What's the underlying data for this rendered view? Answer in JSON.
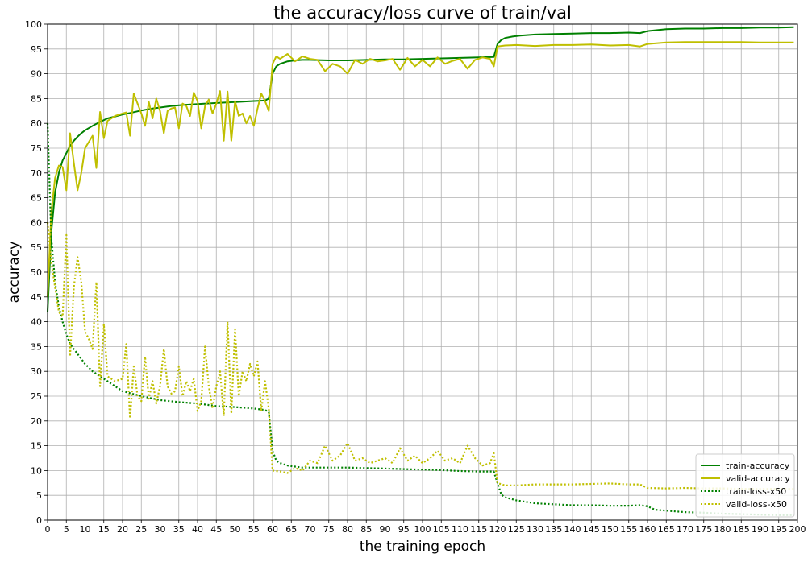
{
  "chart_data": {
    "type": "line",
    "title": "the accuracy/loss curve of train/val",
    "xlabel": "the training epoch",
    "ylabel": "accuracy",
    "xlim": [
      0,
      200
    ],
    "ylim": [
      0,
      100
    ],
    "xticks": [
      0,
      5,
      10,
      15,
      20,
      25,
      30,
      35,
      40,
      45,
      50,
      55,
      60,
      65,
      70,
      75,
      80,
      85,
      90,
      95,
      100,
      105,
      110,
      115,
      120,
      125,
      130,
      135,
      140,
      145,
      150,
      155,
      160,
      165,
      170,
      175,
      180,
      185,
      190,
      195,
      200
    ],
    "yticks": [
      0,
      5,
      10,
      15,
      20,
      25,
      30,
      35,
      40,
      45,
      50,
      55,
      60,
      65,
      70,
      75,
      80,
      85,
      90,
      95,
      100
    ],
    "grid": true,
    "legend_position": "lower-right",
    "colors": {
      "train": "#008000",
      "valid": "#bfbf00",
      "grid": "#b0b0b0"
    },
    "series": [
      {
        "name": "train-accuracy",
        "style": "solid",
        "color": "#008000",
        "x": [
          0,
          1,
          2,
          3,
          4,
          5,
          6,
          7,
          8,
          9,
          10,
          12,
          14,
          16,
          18,
          20,
          22,
          25,
          28,
          30,
          33,
          36,
          40,
          45,
          50,
          55,
          58,
          59,
          60,
          61,
          62,
          64,
          66,
          68,
          70,
          75,
          80,
          85,
          90,
          95,
          100,
          105,
          110,
          115,
          119,
          120,
          121,
          122,
          124,
          126,
          130,
          135,
          140,
          145,
          150,
          155,
          158,
          160,
          165,
          170,
          175,
          180,
          185,
          190,
          195,
          199
        ],
        "y": [
          42,
          58,
          66,
          70,
          72.5,
          74,
          75.5,
          76.5,
          77.3,
          78,
          78.6,
          79.5,
          80.3,
          81,
          81.4,
          81.8,
          82.1,
          82.6,
          83,
          83.2,
          83.5,
          83.7,
          83.9,
          84.1,
          84.3,
          84.5,
          84.6,
          85,
          90,
          91.5,
          92,
          92.5,
          92.7,
          92.8,
          92.8,
          92.7,
          92.7,
          92.8,
          92.9,
          92.9,
          93,
          93.1,
          93.2,
          93.3,
          93.4,
          96,
          96.8,
          97.2,
          97.5,
          97.7,
          97.9,
          98,
          98.1,
          98.2,
          98.2,
          98.3,
          98.2,
          98.6,
          99,
          99.1,
          99.1,
          99.2,
          99.2,
          99.3,
          99.3,
          99.4
        ]
      },
      {
        "name": "valid-accuracy",
        "style": "solid",
        "color": "#bfbf00",
        "x": [
          0,
          1,
          2,
          3,
          4,
          5,
          6,
          7,
          8,
          9,
          10,
          12,
          13,
          14,
          15,
          16,
          18,
          20,
          21,
          22,
          23,
          24,
          25,
          26,
          27,
          28,
          29,
          30,
          31,
          32,
          33,
          34,
          35,
          36,
          37,
          38,
          39,
          40,
          41,
          42,
          43,
          44,
          45,
          46,
          47,
          48,
          49,
          50,
          51,
          52,
          53,
          54,
          55,
          56,
          57,
          58,
          59,
          60,
          61,
          62,
          64,
          66,
          68,
          70,
          72,
          74,
          76,
          78,
          80,
          82,
          84,
          86,
          88,
          90,
          92,
          94,
          96,
          98,
          100,
          102,
          104,
          106,
          108,
          110,
          112,
          114,
          116,
          118,
          119,
          120,
          122,
          125,
          130,
          135,
          140,
          145,
          150,
          155,
          158,
          160,
          165,
          170,
          175,
          180,
          185,
          190,
          195,
          199
        ],
        "y": [
          45,
          62,
          69,
          71.5,
          71.2,
          66.5,
          78,
          72,
          66.5,
          70,
          75,
          77.5,
          71,
          82.3,
          77,
          80.5,
          81.5,
          82,
          82.2,
          77.5,
          86,
          84,
          82,
          79.5,
          84.3,
          81,
          85,
          82.5,
          78,
          82.5,
          83,
          83.2,
          79,
          84,
          83.5,
          81.5,
          86.2,
          84.5,
          79,
          83.5,
          84.8,
          82,
          84,
          86.5,
          76.5,
          86.4,
          76.5,
          84.5,
          81.5,
          82,
          80,
          81.5,
          79.5,
          83,
          86,
          84.5,
          82.5,
          92,
          93.5,
          93,
          94,
          92.5,
          93.5,
          93,
          92.8,
          90.5,
          92,
          91.5,
          90,
          92.8,
          92,
          93,
          92.5,
          92.7,
          93,
          90.8,
          93.2,
          91.5,
          92.8,
          91.5,
          93.3,
          92,
          92.6,
          93,
          91,
          92.8,
          93.3,
          93,
          91.5,
          95.5,
          95.7,
          95.8,
          95.6,
          95.8,
          95.8,
          95.9,
          95.7,
          95.8,
          95.5,
          96,
          96.3,
          96.4,
          96.4,
          96.4,
          96.4,
          96.3,
          96.3,
          96.3
        ]
      },
      {
        "name": "train-loss-x50",
        "style": "dotted",
        "color": "#008000",
        "x": [
          0,
          1,
          2,
          3,
          4,
          5,
          6,
          7,
          8,
          10,
          12,
          15,
          18,
          20,
          25,
          30,
          35,
          40,
          45,
          50,
          55,
          58,
          59,
          60,
          61,
          62,
          64,
          66,
          68,
          70,
          75,
          80,
          85,
          90,
          95,
          100,
          105,
          110,
          115,
          119,
          120,
          121,
          122,
          125,
          130,
          135,
          140,
          145,
          150,
          155,
          158,
          160,
          162,
          165,
          170,
          175,
          180,
          185,
          190,
          195,
          199
        ],
        "y": [
          80,
          57,
          48,
          43,
          40,
          37.5,
          35.5,
          34.5,
          33.5,
          31.5,
          30,
          28.5,
          27,
          26,
          25,
          24.2,
          23.8,
          23.5,
          23,
          22.8,
          22.5,
          22.2,
          21.8,
          14,
          12,
          11.5,
          11,
          10.8,
          10.6,
          10.6,
          10.6,
          10.6,
          10.5,
          10.4,
          10.3,
          10.2,
          10.1,
          9.9,
          9.8,
          9.8,
          7.5,
          5.2,
          4.6,
          4,
          3.4,
          3.2,
          3,
          3,
          2.9,
          2.9,
          3,
          2.8,
          2.1,
          1.9,
          1.6,
          1.5,
          1.3,
          1.2,
          1.1,
          1,
          1
        ]
      },
      {
        "name": "valid-loss-x50",
        "style": "dotted",
        "color": "#bfbf00",
        "x": [
          0,
          1,
          2,
          3,
          4,
          5,
          6,
          7,
          8,
          9,
          10,
          11,
          12,
          13,
          14,
          15,
          16,
          18,
          20,
          21,
          22,
          23,
          24,
          25,
          26,
          27,
          28,
          29,
          30,
          31,
          32,
          33,
          34,
          35,
          36,
          37,
          38,
          39,
          40,
          41,
          42,
          43,
          44,
          45,
          46,
          47,
          48,
          49,
          50,
          51,
          52,
          53,
          54,
          55,
          56,
          57,
          58,
          59,
          60,
          62,
          64,
          66,
          68,
          70,
          72,
          74,
          76,
          78,
          80,
          82,
          84,
          86,
          88,
          90,
          92,
          94,
          96,
          98,
          100,
          102,
          104,
          106,
          108,
          110,
          112,
          114,
          116,
          118,
          119,
          120,
          122,
          125,
          130,
          135,
          140,
          145,
          150,
          155,
          158,
          160,
          165,
          170,
          175,
          180,
          185,
          190,
          195,
          199
        ],
        "y": [
          60,
          52,
          47,
          42,
          41,
          57.5,
          33,
          47,
          53,
          48,
          38,
          36.5,
          34.5,
          48,
          27,
          39.5,
          29,
          28,
          28.5,
          35.5,
          20.5,
          31,
          25,
          24,
          33,
          24.5,
          28,
          23.5,
          27,
          34.5,
          27,
          25.5,
          26,
          31,
          25,
          28,
          26,
          28.5,
          22,
          24,
          35,
          27,
          22.5,
          27,
          30,
          21,
          40,
          21.5,
          38.5,
          25,
          30,
          28,
          31.5,
          29,
          32,
          22,
          28,
          22.5,
          10,
          9.8,
          9.5,
          10.5,
          10,
          12,
          11.5,
          15,
          12,
          13,
          15.5,
          12,
          12.5,
          11.5,
          12,
          12.5,
          11.5,
          14.5,
          12,
          13,
          11.5,
          12.5,
          14,
          12,
          12.5,
          11.5,
          15,
          12.5,
          11,
          11.5,
          13.5,
          7.5,
          7,
          7,
          7.2,
          7.2,
          7.2,
          7.3,
          7.4,
          7.2,
          7.2,
          6.5,
          6.4,
          6.5,
          6.4,
          6.4,
          6.3,
          6.3,
          6.3,
          6.3
        ]
      }
    ]
  }
}
